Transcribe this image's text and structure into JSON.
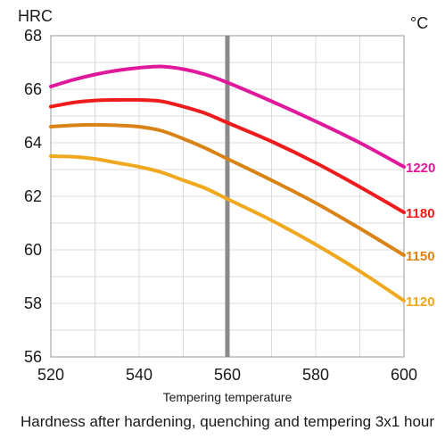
{
  "chart_data": {
    "type": "line",
    "ylabel": "HRC",
    "series_unit": "°C",
    "xlabel": "Tempering temperature",
    "caption": "Hardness after hardening, quenching and tempering  3x1 hour",
    "xlim": [
      520,
      600
    ],
    "ylim": [
      56,
      68
    ],
    "x_ticks": [
      520,
      540,
      560,
      580,
      600
    ],
    "y_ticks": [
      56,
      58,
      60,
      62,
      64,
      66,
      68
    ],
    "grid": true,
    "reference_line_x": 560,
    "series": [
      {
        "name": "1220",
        "color": "#e0189c",
        "x": [
          520,
          525,
          530,
          535,
          540,
          545,
          550,
          555,
          560,
          570,
          580,
          590,
          600
        ],
        "y": [
          66.1,
          66.35,
          66.55,
          66.7,
          66.8,
          66.85,
          66.75,
          66.55,
          66.25,
          65.55,
          64.8,
          64.0,
          63.1
        ]
      },
      {
        "name": "1180",
        "color": "#ee1c1c",
        "x": [
          520,
          525,
          530,
          535,
          540,
          545,
          550,
          555,
          560,
          570,
          580,
          590,
          600
        ],
        "y": [
          65.35,
          65.5,
          65.58,
          65.6,
          65.6,
          65.55,
          65.35,
          65.1,
          64.75,
          64.05,
          63.25,
          62.35,
          61.4
        ]
      },
      {
        "name": "1150",
        "color": "#d98317",
        "x": [
          520,
          525,
          530,
          535,
          540,
          545,
          550,
          555,
          560,
          570,
          580,
          590,
          600
        ],
        "y": [
          64.6,
          64.65,
          64.67,
          64.65,
          64.6,
          64.45,
          64.15,
          63.8,
          63.4,
          62.6,
          61.75,
          60.8,
          59.8
        ]
      },
      {
        "name": "1120",
        "color": "#f0a81e",
        "x": [
          520,
          525,
          530,
          535,
          540,
          545,
          550,
          555,
          560,
          570,
          580,
          590,
          600
        ],
        "y": [
          63.5,
          63.48,
          63.4,
          63.25,
          63.1,
          62.9,
          62.6,
          62.3,
          61.9,
          61.1,
          60.2,
          59.2,
          58.1
        ]
      }
    ]
  }
}
